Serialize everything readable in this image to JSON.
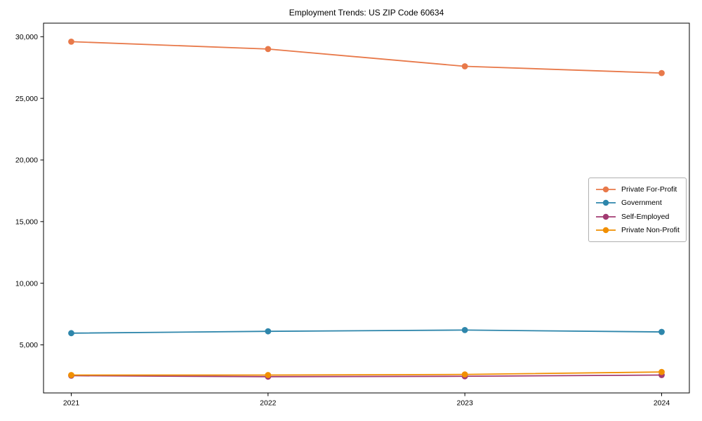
{
  "chart_data": {
    "type": "line",
    "title": "Employment Trends: US ZIP Code 60634",
    "x": [
      2021,
      2022,
      2023,
      2024
    ],
    "x_tick_labels": [
      "2021",
      "2022",
      "2023",
      "2024"
    ],
    "series": [
      {
        "name": "Private For-Profit",
        "color": "#E8794A",
        "values": [
          29600,
          29000,
          27600,
          27050
        ]
      },
      {
        "name": "Government",
        "color": "#2E86AB",
        "values": [
          5950,
          6100,
          6200,
          6050
        ]
      },
      {
        "name": "Self-Employed",
        "color": "#A23B72",
        "values": [
          2500,
          2420,
          2450,
          2550
        ]
      },
      {
        "name": "Private Non-Profit",
        "color": "#F18F01",
        "values": [
          2550,
          2550,
          2600,
          2800
        ]
      }
    ],
    "ylim": [
      1100,
      31100
    ],
    "y_ticks": [
      5000,
      10000,
      15000,
      20000,
      25000,
      30000
    ],
    "y_tick_labels": [
      "5,000",
      "10,000",
      "15,000",
      "20,000",
      "25,000",
      "30,000"
    ],
    "xlabel": "",
    "ylabel": "",
    "grid": false,
    "legend_position": "center-right",
    "marker": "circle",
    "marker_radius": 4.4,
    "line_width": 1.8,
    "spine_color": "#000000",
    "tick_color": "#000000"
  }
}
